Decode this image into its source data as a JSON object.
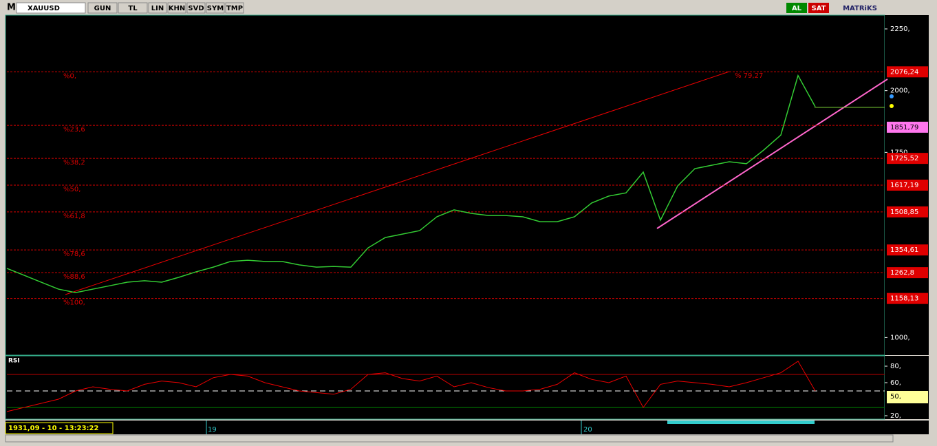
{
  "toolbar": {
    "logo": "M",
    "symbol": "XAUUSD",
    "buttons": [
      "GUN",
      "TL",
      "LIN",
      "KHN",
      "SVD",
      "SYM",
      "TMP"
    ],
    "buy": "AL",
    "sell": "SAT",
    "brand": "MATRiKS"
  },
  "price_axis": {
    "ticks": [
      {
        "value": 2250,
        "label": "2250,"
      },
      {
        "value": 2000,
        "label": "2000,"
      },
      {
        "value": 1750,
        "label": "1750,"
      },
      {
        "value": 1000,
        "label": "1000,"
      }
    ]
  },
  "fib_levels": [
    {
      "label": "%0,",
      "price": 2076.24,
      "price_label": "2076,24"
    },
    {
      "label": "%23,6",
      "price": 1859.5
    },
    {
      "label": "%38,2",
      "price": 1725.52,
      "price_label": "1725,52"
    },
    {
      "label": "%50,",
      "price": 1617.19,
      "price_label": "1617,19"
    },
    {
      "label": "%61,8",
      "price": 1508.85,
      "price_label": "1508,85"
    },
    {
      "label": "%78,6",
      "price": 1354.61,
      "price_label": "1354,61"
    },
    {
      "label": "%88,6",
      "price": 1262.8,
      "price_label": "1262,8"
    },
    {
      "label": "%100,",
      "price": 1158.13,
      "price_label": "1158,13"
    }
  ],
  "trend_label": "% 79,27",
  "current_price": {
    "value": 1851.79,
    "label": "1851,79"
  },
  "price_series": [
    1280,
    1252,
    1224,
    1196,
    1182,
    1196,
    1210,
    1224,
    1230,
    1224,
    1244,
    1266,
    1285,
    1308,
    1313,
    1308,
    1308,
    1294,
    1285,
    1288,
    1285,
    1363,
    1405,
    1419,
    1433,
    1489,
    1517,
    1503,
    1494,
    1494,
    1489,
    1469,
    1469,
    1489,
    1545,
    1573,
    1586,
    1670,
    1475,
    1614,
    1684,
    1698,
    1712,
    1704,
    1759,
    1820,
    2061,
    1935
  ],
  "rsi": {
    "title": "RSI",
    "ticks": [
      {
        "value": 80,
        "label": "80,"
      },
      {
        "value": 60,
        "label": "60,"
      },
      {
        "value": 20,
        "label": "20,"
      }
    ],
    "mid": {
      "value": 50,
      "label": "50,"
    },
    "upper": 70,
    "lower": 30,
    "values": [
      25,
      30,
      35,
      40,
      50,
      55,
      52,
      50,
      58,
      62,
      60,
      55,
      66,
      70,
      68,
      60,
      55,
      50,
      48,
      46,
      52,
      70,
      72,
      65,
      62,
      68,
      55,
      60,
      54,
      50,
      50,
      52,
      58,
      72,
      64,
      60,
      68,
      30,
      58,
      62,
      60,
      58,
      55,
      60,
      66,
      72,
      86,
      50
    ]
  },
  "time_labels": [
    "19",
    "20"
  ],
  "status": "1931,09 - 10 - 13:23:22"
}
